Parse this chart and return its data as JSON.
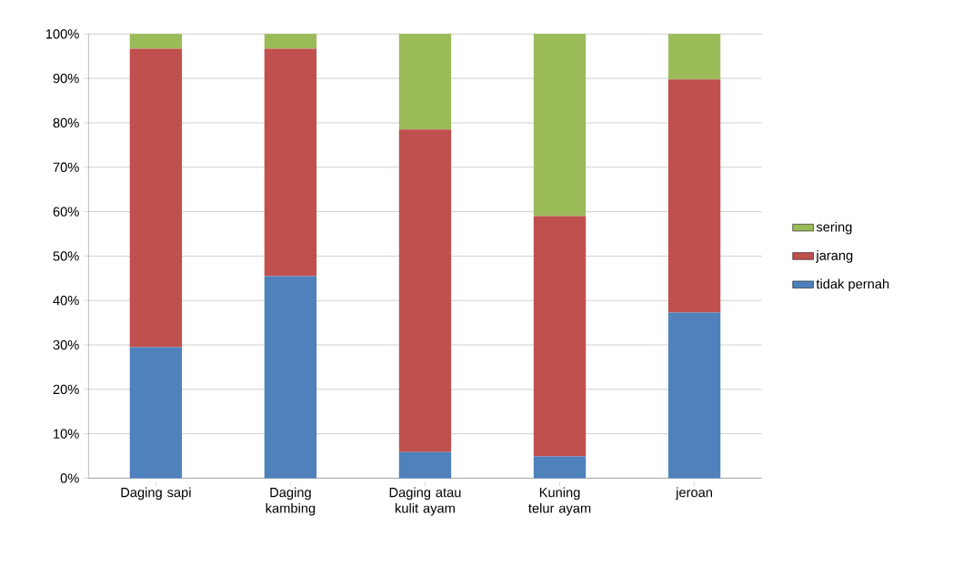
{
  "chart_data": {
    "type": "bar",
    "stacked": true,
    "categories": [
      "Daging sapi",
      "Daging kambing",
      "Daging atau kulit ayam",
      "Kuning telur ayam",
      "jeroan"
    ],
    "series": [
      {
        "name": "tidak pernah",
        "color": "#4f81bd",
        "values": [
          29.5,
          45.5,
          5.9,
          4.9,
          37.3
        ]
      },
      {
        "name": "jarang",
        "color": "#c0504d",
        "values": [
          67.2,
          51.2,
          72.6,
          54.1,
          52.5
        ]
      },
      {
        "name": "sering",
        "color": "#9bbb59",
        "values": [
          3.3,
          3.3,
          21.5,
          41.0,
          10.2
        ]
      }
    ],
    "ylim": [
      0,
      100
    ],
    "yticks": [
      {
        "value": 0,
        "label": "0%"
      },
      {
        "value": 10,
        "label": "10%"
      },
      {
        "value": 20,
        "label": "20%"
      },
      {
        "value": 30,
        "label": "30%"
      },
      {
        "value": 40,
        "label": "40%"
      },
      {
        "value": 50,
        "label": "50%"
      },
      {
        "value": 60,
        "label": "60%"
      },
      {
        "value": 70,
        "label": "70%"
      },
      {
        "value": 80,
        "label": "80%"
      },
      {
        "value": 90,
        "label": "90%"
      },
      {
        "value": 100,
        "label": "100%"
      }
    ],
    "grid": "y",
    "legend": "right"
  }
}
